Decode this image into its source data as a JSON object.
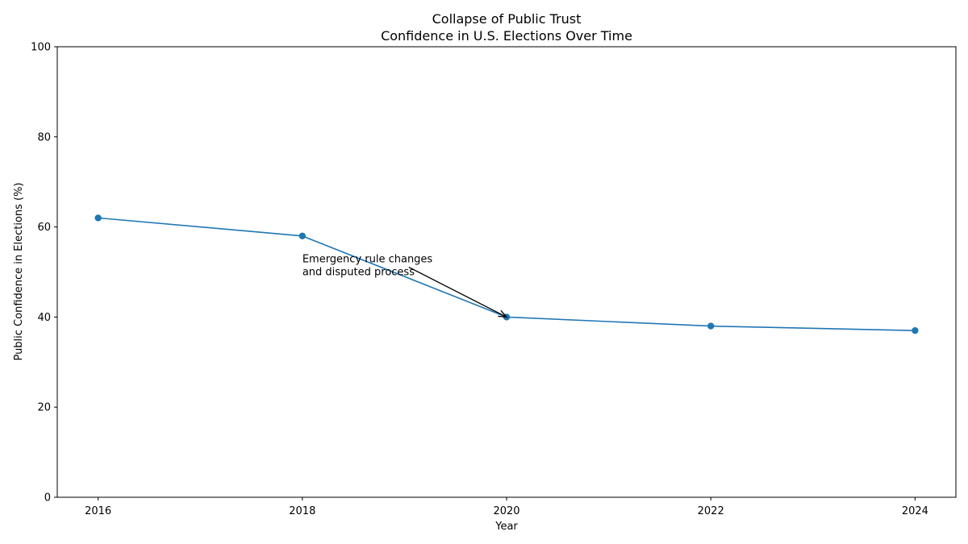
{
  "chart_data": {
    "type": "line",
    "title": "Collapse of Public Trust",
    "subtitle": "Confidence in U.S. Elections Over Time",
    "xlabel": "Year",
    "ylabel": "Public Confidence in Elections (%)",
    "x": [
      2016,
      2018,
      2020,
      2022,
      2024
    ],
    "values": [
      62,
      58,
      40,
      38,
      37
    ],
    "xlim": [
      2015.6,
      2024.4
    ],
    "ylim": [
      0,
      100
    ],
    "xticks": [
      "2016",
      "2018",
      "2020",
      "2022",
      "2024"
    ],
    "yticks": [
      "0",
      "20",
      "40",
      "60",
      "80",
      "100"
    ],
    "grid": false,
    "color": "#1f77b4",
    "annotation": {
      "lines": [
        "Emergency rule changes",
        "and disputed process"
      ],
      "text_x": 2018,
      "text_y": 50,
      "target_x": 2020,
      "target_y": 40
    }
  }
}
